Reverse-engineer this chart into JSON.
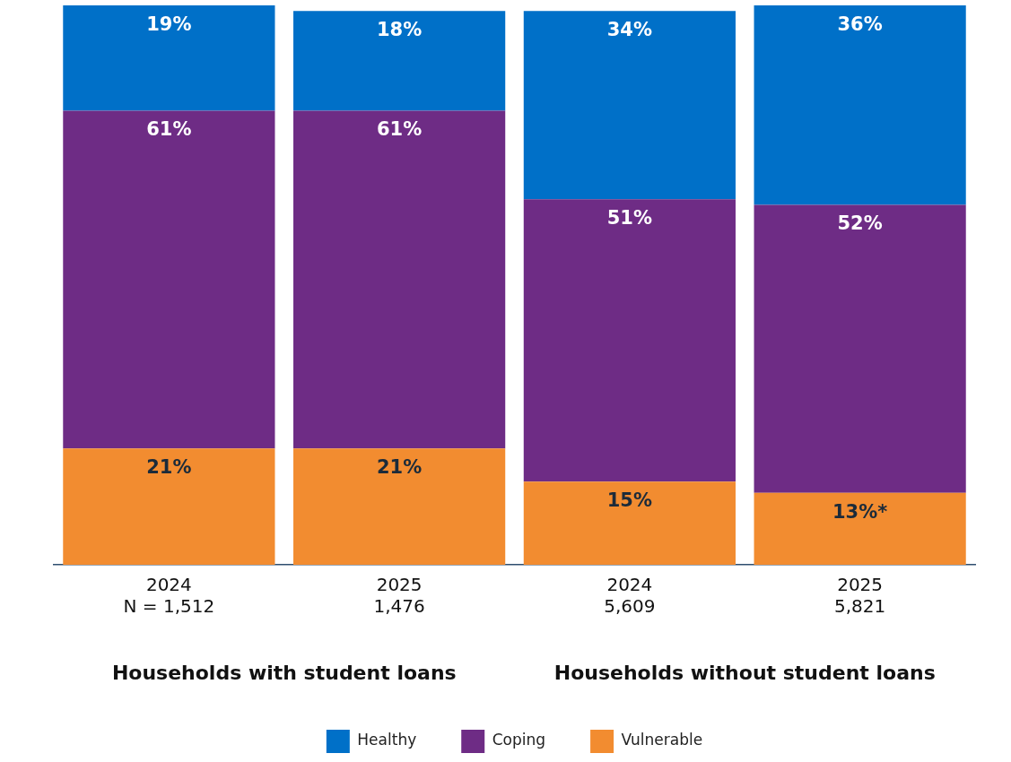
{
  "chart_data": {
    "type": "bar",
    "stacked": true,
    "categories": [
      "2024\nN = 1,512",
      "2025\n1,476",
      "2024\n5,609",
      "2025\n5,821"
    ],
    "series": [
      {
        "name": "Vulnerable",
        "color": "#f28c30",
        "values": [
          21,
          21,
          15,
          13
        ],
        "value_labels": [
          "21%",
          "21%",
          "15%",
          "13%*"
        ]
      },
      {
        "name": "Coping",
        "color": "#6e2c85",
        "values": [
          61,
          61,
          51,
          52
        ],
        "value_labels": [
          "61%",
          "61%",
          "51%",
          "52%"
        ]
      },
      {
        "name": "Healthy",
        "color": "#0070c8",
        "values": [
          19,
          18,
          34,
          36
        ],
        "value_labels": [
          "19%",
          "18%",
          "34%",
          "36%"
        ]
      }
    ],
    "annotations": [
      "Households with student loans",
      "Households without student loans"
    ],
    "legend": "bottom",
    "grid": false,
    "tick_labels": "x"
  }
}
